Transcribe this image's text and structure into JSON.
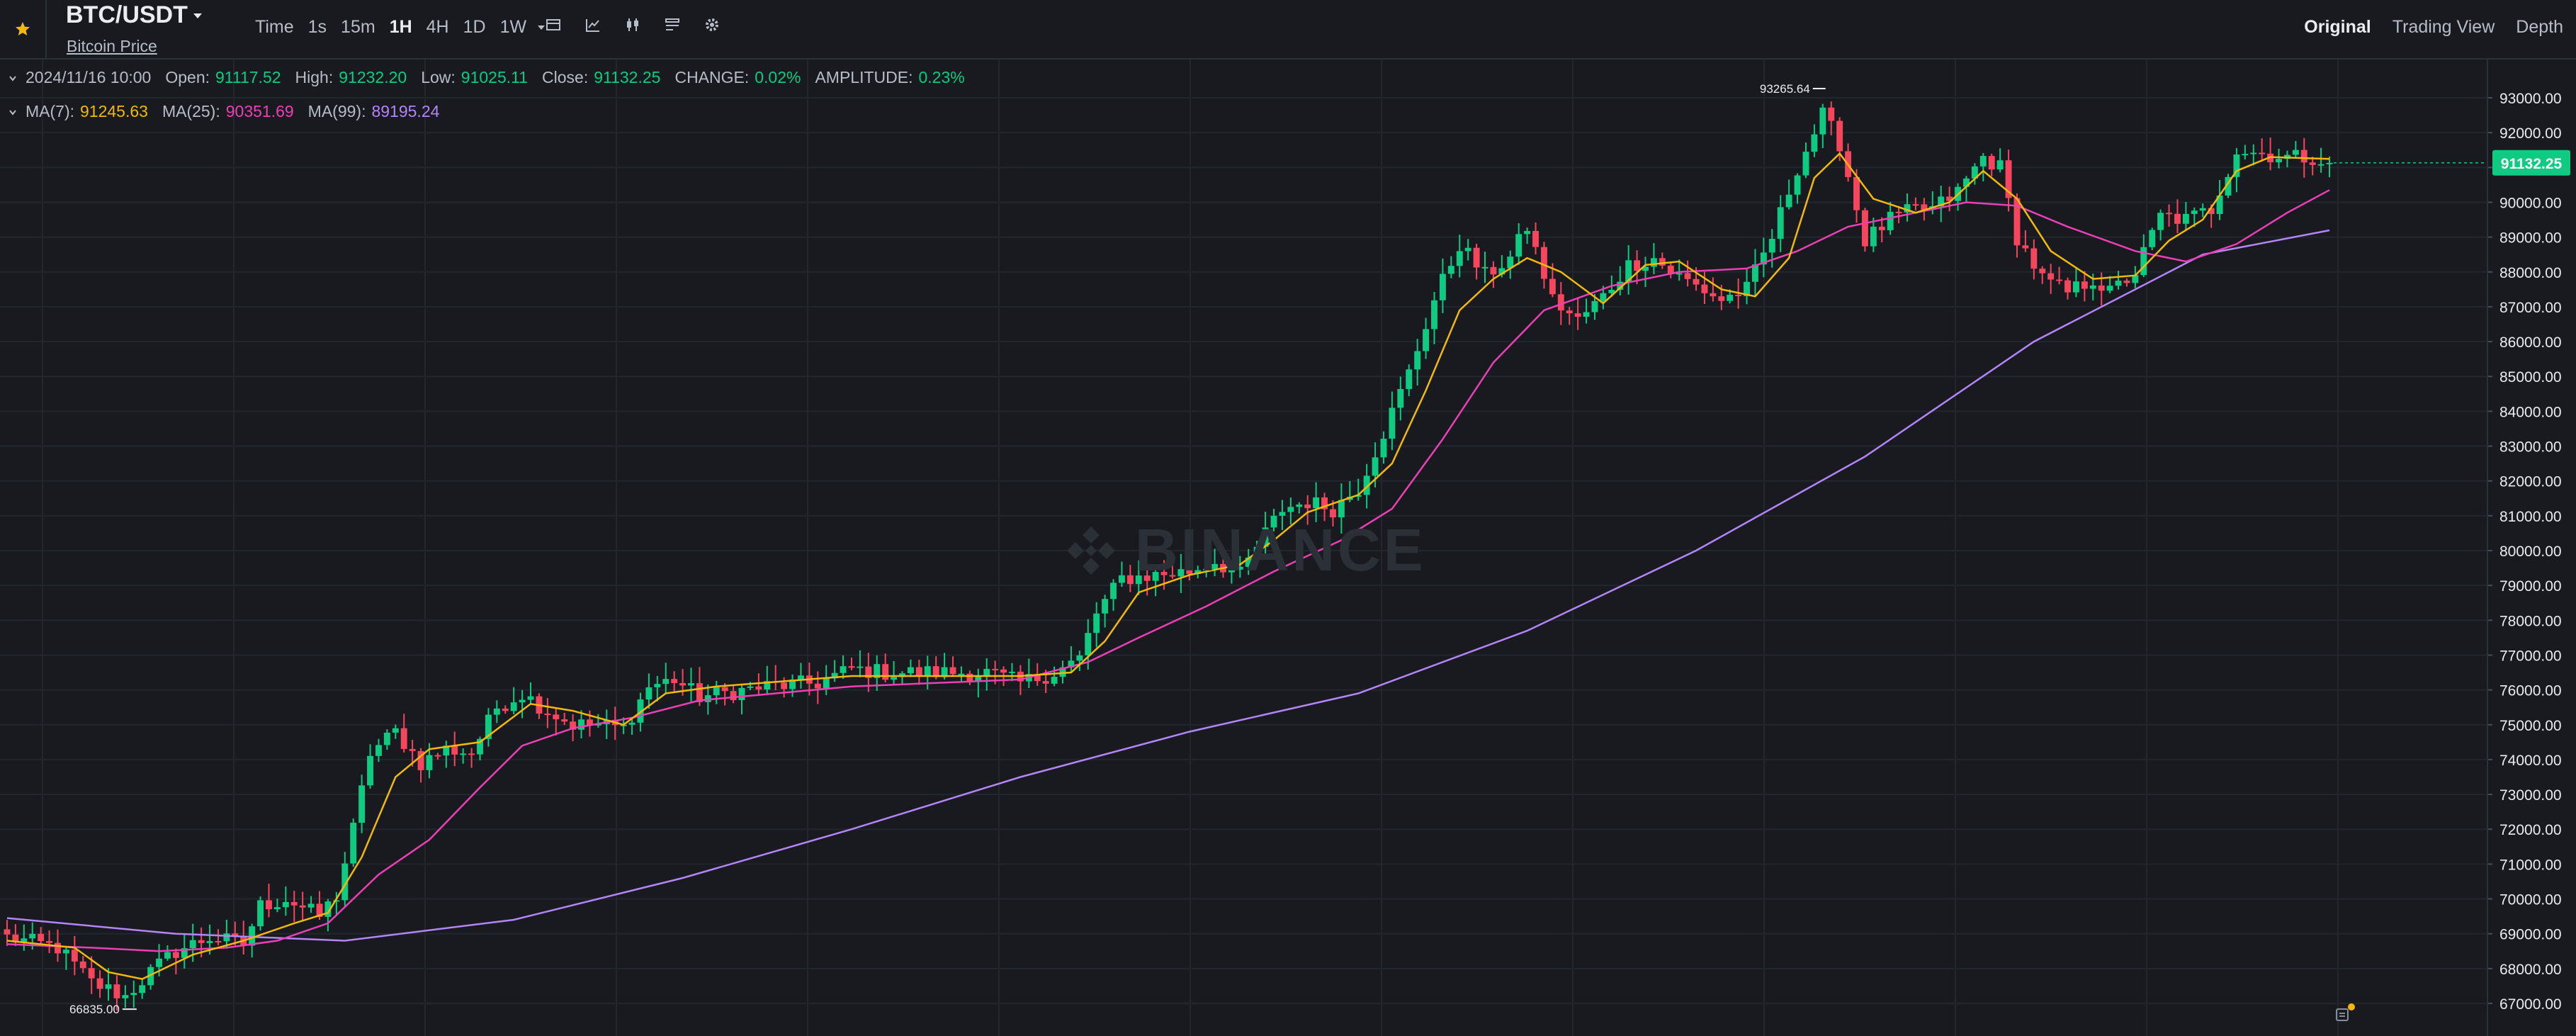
{
  "header": {
    "symbol": "BTC/USDT",
    "subtitle": "Bitcoin Price",
    "intervals": [
      {
        "label": "Time",
        "active": false
      },
      {
        "label": "1s",
        "active": false
      },
      {
        "label": "15m",
        "active": false
      },
      {
        "label": "1H",
        "active": true
      },
      {
        "label": "4H",
        "active": false
      },
      {
        "label": "1D",
        "active": false
      },
      {
        "label": "1W",
        "active": false
      }
    ],
    "tools": [
      "candle-settings-icon",
      "indicator-icon",
      "chart-type-icon",
      "layout-icon",
      "gear-icon"
    ],
    "views": [
      {
        "label": "Original",
        "active": true
      },
      {
        "label": "Trading View",
        "active": false
      },
      {
        "label": "Depth",
        "active": false
      }
    ]
  },
  "ohlc": {
    "datetime": "2024/11/16 10:00",
    "open_label": "Open:",
    "open": "91117.52",
    "high_label": "High:",
    "high": "91232.20",
    "low_label": "Low:",
    "low": "91025.11",
    "close_label": "Close:",
    "close": "91132.25",
    "change_label": "CHANGE:",
    "change": "0.02%",
    "amplitude_label": "AMPLITUDE:",
    "amplitude": "0.23%"
  },
  "ma": {
    "ma7_label": "MA(7):",
    "ma7": "91245.63",
    "ma25_label": "MA(25):",
    "ma25": "90351.69",
    "ma99_label": "MA(99):",
    "ma99": "89195.24"
  },
  "watermark": "BINANCE",
  "colors": {
    "up": "#0ecb81",
    "down": "#f6465d",
    "ma7": "#f0b90b",
    "ma25": "#eb40b5",
    "ma99": "#b385f8",
    "grid": "#22262d",
    "background": "#181a20"
  },
  "chart_data": {
    "type": "candlestick",
    "y_ticks": [
      "93000.00",
      "92000.00",
      "91000.00",
      "90000.00",
      "89000.00",
      "88000.00",
      "87000.00",
      "86000.00",
      "85000.00",
      "84000.00",
      "83000.00",
      "82000.00",
      "81000.00",
      "80000.00",
      "79000.00",
      "78000.00",
      "77000.00",
      "76000.00",
      "75000.00",
      "74000.00",
      "73000.00",
      "72000.00",
      "71000.00",
      "70000.00",
      "69000.00",
      "68000.00",
      "67000.00"
    ],
    "ylim": [
      66500,
      93600
    ],
    "last_price": "91132.25",
    "max_marker": "93265.64",
    "min_marker": "66835.00",
    "close_path": [
      [
        0,
        68900
      ],
      [
        6,
        68600
      ],
      [
        10,
        67600
      ],
      [
        14,
        67200
      ],
      [
        17,
        67900
      ],
      [
        20,
        68500
      ],
      [
        24,
        68900
      ],
      [
        28,
        68700
      ],
      [
        30,
        69800
      ],
      [
        33,
        70000
      ],
      [
        37,
        69500
      ],
      [
        39,
        70100
      ],
      [
        41,
        72000
      ],
      [
        43,
        74200
      ],
      [
        46,
        74800
      ],
      [
        49,
        73900
      ],
      [
        52,
        74300
      ],
      [
        55,
        74200
      ],
      [
        58,
        75500
      ],
      [
        61,
        75900
      ],
      [
        64,
        75400
      ],
      [
        67,
        75000
      ],
      [
        70,
        75000
      ],
      [
        73,
        74900
      ],
      [
        76,
        76100
      ],
      [
        79,
        76300
      ],
      [
        82,
        75800
      ],
      [
        90,
        76100
      ],
      [
        96,
        76200
      ],
      [
        100,
        76600
      ],
      [
        104,
        76500
      ],
      [
        110,
        76500
      ],
      [
        116,
        76500
      ],
      [
        120,
        76200
      ],
      [
        124,
        76500
      ],
      [
        127,
        76900
      ],
      [
        129,
        78200
      ],
      [
        132,
        79200
      ],
      [
        136,
        79300
      ],
      [
        140,
        79400
      ],
      [
        143,
        79700
      ],
      [
        146,
        79300
      ],
      [
        149,
        80500
      ],
      [
        151,
        81200
      ],
      [
        154,
        81400
      ],
      [
        157,
        81200
      ],
      [
        160,
        81800
      ],
      [
        163,
        83400
      ],
      [
        166,
        85100
      ],
      [
        169,
        87200
      ],
      [
        172,
        88800
      ],
      [
        175,
        87900
      ],
      [
        178,
        88400
      ],
      [
        180,
        89300
      ],
      [
        183,
        87200
      ],
      [
        186,
        86600
      ],
      [
        189,
        87300
      ],
      [
        192,
        88200
      ],
      [
        195,
        88400
      ],
      [
        197,
        88000
      ],
      [
        200,
        87600
      ],
      [
        203,
        87200
      ],
      [
        206,
        87500
      ],
      [
        209,
        89000
      ],
      [
        212,
        91000
      ],
      [
        215,
        92500
      ],
      [
        217,
        91700
      ],
      [
        220,
        88900
      ],
      [
        223,
        89500
      ],
      [
        226,
        89800
      ],
      [
        228,
        89800
      ],
      [
        231,
        90300
      ],
      [
        234,
        91300
      ],
      [
        236,
        91000
      ],
      [
        238,
        89000
      ],
      [
        241,
        87800
      ],
      [
        244,
        87400
      ],
      [
        247,
        87800
      ],
      [
        249,
        87400
      ],
      [
        252,
        88000
      ],
      [
        255,
        89600
      ],
      [
        258,
        89500
      ],
      [
        261,
        89800
      ],
      [
        264,
        91500
      ],
      [
        267,
        91400
      ],
      [
        270,
        91300
      ],
      [
        273,
        91300
      ],
      [
        275,
        91132
      ]
    ],
    "ma7": [
      [
        0,
        68800
      ],
      [
        8,
        68600
      ],
      [
        12,
        67900
      ],
      [
        16,
        67700
      ],
      [
        22,
        68400
      ],
      [
        28,
        68800
      ],
      [
        34,
        69300
      ],
      [
        38,
        69600
      ],
      [
        42,
        71200
      ],
      [
        46,
        73500
      ],
      [
        50,
        74300
      ],
      [
        56,
        74500
      ],
      [
        62,
        75600
      ],
      [
        67,
        75400
      ],
      [
        73,
        75000
      ],
      [
        78,
        75900
      ],
      [
        84,
        76100
      ],
      [
        100,
        76400
      ],
      [
        120,
        76400
      ],
      [
        126,
        76500
      ],
      [
        130,
        77400
      ],
      [
        134,
        78800
      ],
      [
        140,
        79300
      ],
      [
        146,
        79600
      ],
      [
        150,
        80300
      ],
      [
        154,
        81100
      ],
      [
        160,
        81600
      ],
      [
        164,
        82500
      ],
      [
        168,
        84600
      ],
      [
        172,
        86900
      ],
      [
        176,
        87800
      ],
      [
        180,
        88400
      ],
      [
        184,
        88000
      ],
      [
        189,
        87100
      ],
      [
        194,
        88200
      ],
      [
        198,
        88300
      ],
      [
        203,
        87500
      ],
      [
        207,
        87300
      ],
      [
        211,
        88400
      ],
      [
        214,
        90700
      ],
      [
        217,
        91400
      ],
      [
        221,
        90100
      ],
      [
        226,
        89700
      ],
      [
        230,
        90000
      ],
      [
        234,
        90900
      ],
      [
        238,
        90100
      ],
      [
        242,
        88600
      ],
      [
        247,
        87800
      ],
      [
        252,
        87900
      ],
      [
        256,
        88900
      ],
      [
        260,
        89500
      ],
      [
        264,
        90900
      ],
      [
        268,
        91300
      ],
      [
        275,
        91245
      ]
    ],
    "ma25": [
      [
        0,
        68700
      ],
      [
        10,
        68600
      ],
      [
        18,
        68500
      ],
      [
        26,
        68600
      ],
      [
        32,
        68800
      ],
      [
        38,
        69300
      ],
      [
        44,
        70700
      ],
      [
        50,
        71700
      ],
      [
        56,
        73200
      ],
      [
        61,
        74400
      ],
      [
        67,
        74900
      ],
      [
        74,
        75200
      ],
      [
        82,
        75700
      ],
      [
        100,
        76100
      ],
      [
        120,
        76300
      ],
      [
        128,
        76800
      ],
      [
        134,
        77500
      ],
      [
        142,
        78400
      ],
      [
        150,
        79400
      ],
      [
        158,
        80300
      ],
      [
        164,
        81200
      ],
      [
        170,
        83200
      ],
      [
        176,
        85400
      ],
      [
        182,
        86900
      ],
      [
        190,
        87600
      ],
      [
        198,
        88000
      ],
      [
        206,
        88100
      ],
      [
        212,
        88600
      ],
      [
        218,
        89300
      ],
      [
        226,
        89700
      ],
      [
        232,
        90000
      ],
      [
        238,
        89900
      ],
      [
        244,
        89300
      ],
      [
        252,
        88600
      ],
      [
        258,
        88300
      ],
      [
        264,
        88800
      ],
      [
        270,
        89700
      ],
      [
        275,
        90352
      ]
    ],
    "ma99": [
      [
        0,
        69450
      ],
      [
        20,
        69000
      ],
      [
        40,
        68800
      ],
      [
        60,
        69400
      ],
      [
        80,
        70600
      ],
      [
        100,
        72000
      ],
      [
        120,
        73500
      ],
      [
        140,
        74800
      ],
      [
        160,
        75900
      ],
      [
        180,
        77700
      ],
      [
        200,
        80000
      ],
      [
        220,
        82700
      ],
      [
        240,
        86000
      ],
      [
        260,
        88500
      ],
      [
        275,
        89195
      ]
    ]
  }
}
